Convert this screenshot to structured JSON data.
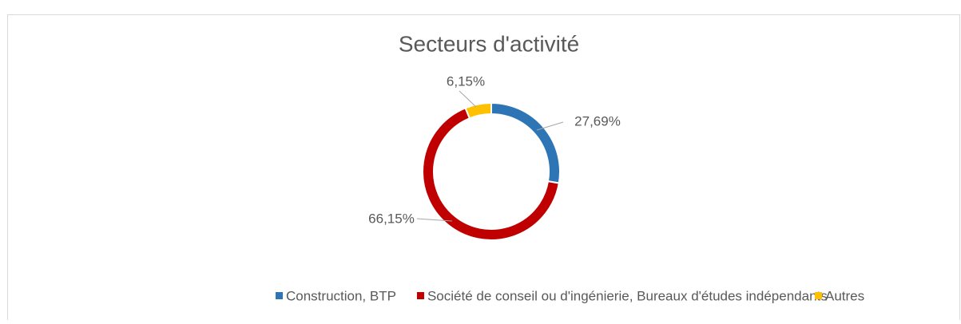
{
  "chart_data": {
    "type": "doughnut",
    "title": "Secteurs d'activité",
    "categories": [
      "Construction, BTP",
      "Société de conseil ou d'ingénierie, Bureaux d'études indépendants",
      "Autres"
    ],
    "values": [
      27.69,
      66.15,
      6.15
    ],
    "value_labels": [
      "27,69%",
      "66,15%",
      "6,15%"
    ],
    "colors": [
      "#2e75b6",
      "#c00000",
      "#ffc000"
    ],
    "legend": "bottom"
  }
}
